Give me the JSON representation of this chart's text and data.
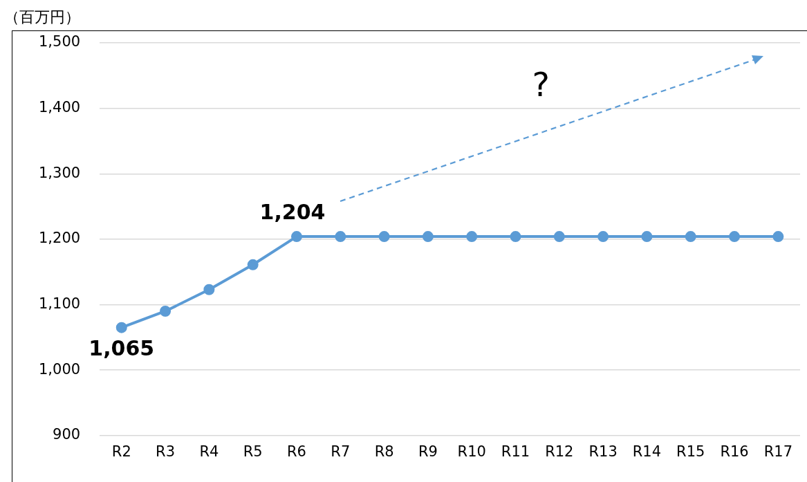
{
  "chart_data": {
    "type": "line",
    "ylabel": "（百万円）",
    "categories": [
      "R2",
      "R3",
      "R4",
      "R5",
      "R6",
      "R7",
      "R8",
      "R9",
      "R10",
      "R11",
      "R12",
      "R13",
      "R14",
      "R15",
      "R16",
      "R17"
    ],
    "series": [
      {
        "color": "#5b9bd5",
        "values": [
          1065,
          1090,
          1123,
          1161,
          1204,
          1204,
          1204,
          1204,
          1204,
          1204,
          1204,
          1204,
          1204,
          1204,
          1204,
          1204
        ],
        "value_labels": [
          "1,065",
          null,
          null,
          null,
          "1,204",
          null,
          null,
          null,
          null,
          null,
          null,
          null,
          null,
          null,
          null,
          null
        ]
      }
    ],
    "ylim": [
      900,
      1500
    ],
    "yticks": [
      {
        "value": 900,
        "label": "900"
      },
      {
        "value": 1000,
        "label": "1,000"
      },
      {
        "value": 1100,
        "label": "1,100"
      },
      {
        "value": 1200,
        "label": "1,200"
      },
      {
        "value": 1300,
        "label": "1,300"
      },
      {
        "value": 1400,
        "label": "1,400"
      },
      {
        "value": 1500,
        "label": "1,500"
      }
    ],
    "grid": "y",
    "marker": "circle",
    "line_style": "solid",
    "legend": false,
    "annotations": [
      "?"
    ]
  }
}
